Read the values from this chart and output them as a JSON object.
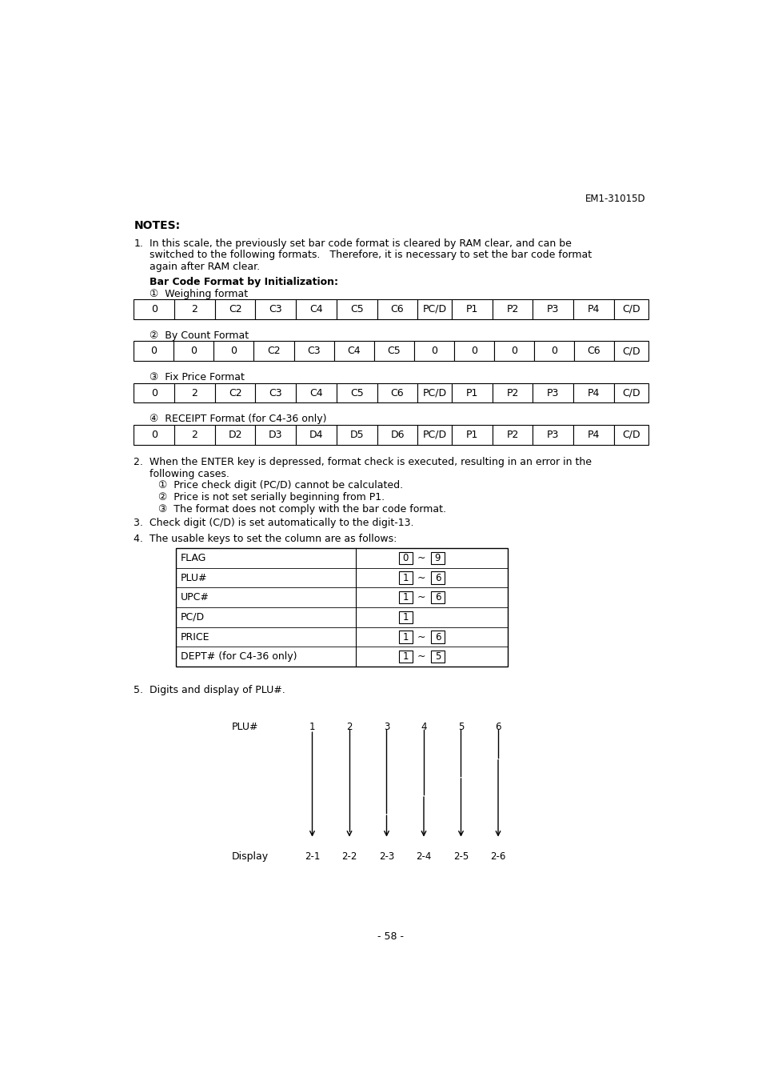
{
  "header_text": "EM1-31015D",
  "notes_title": "NOTES:",
  "note1_line1": "In this scale, the previously set bar code format is cleared by RAM clear, and can be",
  "note1_line2": "switched to the following formats.   Therefore, it is necessary to set the bar code format",
  "note1_line3": "again after RAM clear.",
  "bar_code_format_title": "Bar Code Format by Initialization:",
  "format1_label": "①  Weighing format",
  "format1_cells": [
    "0",
    "2",
    "C2",
    "C3",
    "C4",
    "C5",
    "C6",
    "PC/D",
    "P1",
    "P2",
    "P3",
    "P4",
    "C/D"
  ],
  "format2_label": "②  By Count Format",
  "format2_cells": [
    "0",
    "0",
    "0",
    "C2",
    "C3",
    "C4",
    "C5",
    "0",
    "0",
    "0",
    "0",
    "C6",
    "C/D"
  ],
  "format3_label": "③  Fix Price Format",
  "format3_cells": [
    "0",
    "2",
    "C2",
    "C3",
    "C4",
    "C5",
    "C6",
    "PC/D",
    "P1",
    "P2",
    "P3",
    "P4",
    "C/D"
  ],
  "format4_label": "④  RECEIPT Format (for C4-36 only)",
  "format4_cells": [
    "0",
    "2",
    "D2",
    "D3",
    "D4",
    "D5",
    "D6",
    "PC/D",
    "P1",
    "P2",
    "P3",
    "P4",
    "C/D"
  ],
  "note2_line1": "2.  When the ENTER key is depressed, format check is executed, resulting in an error in the",
  "note2_line2": "following cases.",
  "note2_items": [
    "①  Price check digit (PC/D) cannot be calculated.",
    "②  Price is not set serially beginning from P1.",
    "③  The format does not comply with the bar code format."
  ],
  "note3_text": "3.  Check digit (C/D) is set automatically to the digit-13.",
  "note4_text": "4.  The usable keys to set the column are as follows:",
  "table4_rows": [
    {
      "label": "FLAG",
      "val1": "0",
      "tilde": "~",
      "val2": "9"
    },
    {
      "label": "PLU#",
      "val1": "1",
      "tilde": "~",
      "val2": "6"
    },
    {
      "label": "UPC#",
      "val1": "1",
      "tilde": "~",
      "val2": "6"
    },
    {
      "label": "PC/D",
      "val1": "1",
      "tilde": "",
      "val2": ""
    },
    {
      "label": "PRICE",
      "val1": "1",
      "tilde": "~",
      "val2": "6"
    },
    {
      "label": "DEPT# (for C4-36 only)",
      "val1": "1",
      "tilde": "~",
      "val2": "5"
    }
  ],
  "note5_text": "5.  Digits and display of PLU#.",
  "plu_digits": [
    "1",
    "2",
    "3",
    "4",
    "5",
    "6"
  ],
  "display_labels": [
    "2-1",
    "2-2",
    "2-3",
    "2-4",
    "2-5",
    "2-6"
  ],
  "page_number": "- 58 -"
}
